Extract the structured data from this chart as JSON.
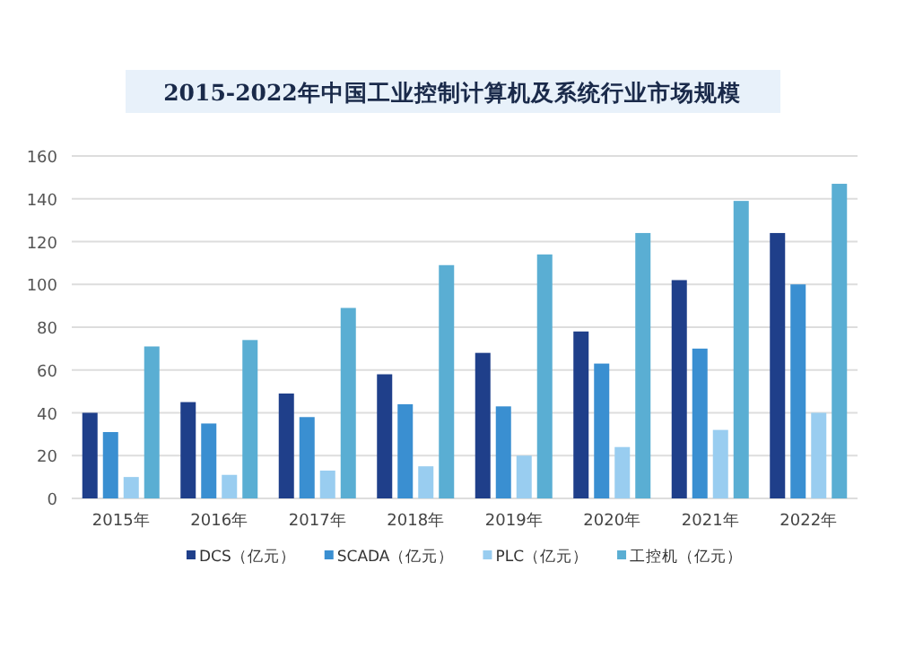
{
  "chart_data": {
    "type": "bar",
    "title": "2015-2022年中国工业控制计算机及系统行业市场规模",
    "categories": [
      "2015年",
      "2016年",
      "2017年",
      "2018年",
      "2019年",
      "2020年",
      "2021年",
      "2022年"
    ],
    "series": [
      {
        "name": "DCS（亿元）",
        "color": "#1f3f8a",
        "values": [
          40,
          45,
          49,
          58,
          68,
          78,
          102,
          124
        ]
      },
      {
        "name": "SCADA（亿元）",
        "color": "#3a8fd1",
        "values": [
          31,
          35,
          38,
          44,
          43,
          63,
          70,
          100
        ]
      },
      {
        "name": "PLC（亿元）",
        "color": "#99cdf0",
        "values": [
          10,
          11,
          13,
          15,
          20,
          24,
          32,
          40
        ]
      },
      {
        "name": "工控机（亿元）",
        "color": "#5aaed3",
        "values": [
          71,
          74,
          89,
          109,
          114,
          124,
          139,
          147
        ]
      }
    ],
    "ylim": [
      0,
      160
    ],
    "yticks": [
      0,
      20,
      40,
      60,
      80,
      100,
      120,
      140,
      160
    ],
    "grid": "y",
    "legend": "bottom"
  }
}
